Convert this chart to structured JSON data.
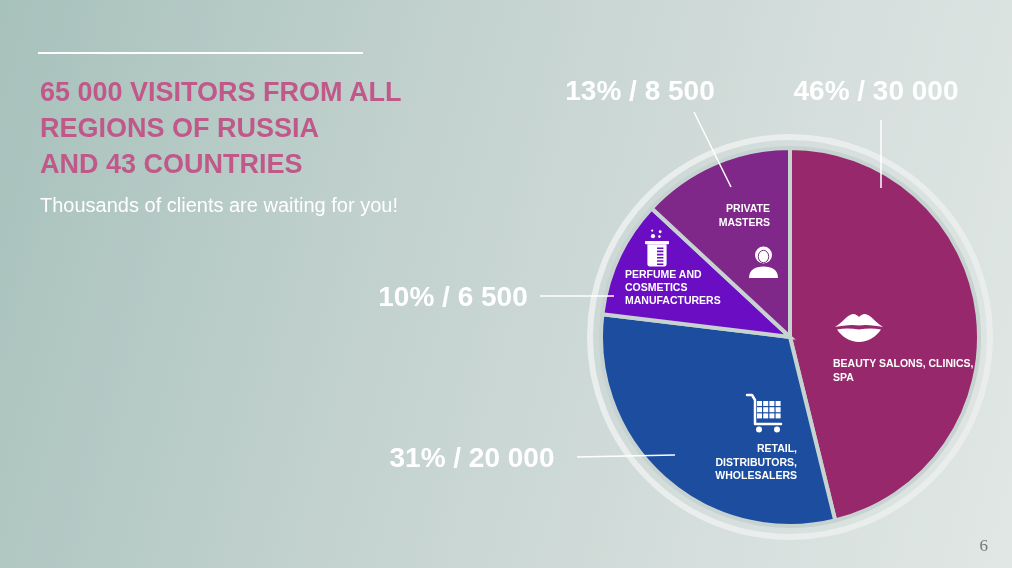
{
  "chart_data": {
    "type": "pie",
    "title": "65 000 VISITORS FROM ALL\nREGIONS OF RUSSIA\nAND 43 COUNTRIES",
    "subtitle": "Thousands of clients are waiting for you!",
    "categories": [
      "BEAUTY SALONS, CLINICS,\nSPA",
      "RETAIL,\nDISTRIBUTORS,\nWHOLESALERS",
      "PERFUME AND\nCOSMETICS\nMANUFACTURERS",
      "PRIVATE\nMASTERS"
    ],
    "values": [
      30000,
      20000,
      6500,
      8500
    ],
    "value_labels": [
      "46% / 30 000",
      "31% / 20 000",
      "10% / 6 500",
      "13% / 8 500"
    ],
    "colors": [
      "#98286c",
      "#1c4d9f",
      "#6a0dc3",
      "#80278a"
    ],
    "annotations": [
      "6"
    ]
  }
}
